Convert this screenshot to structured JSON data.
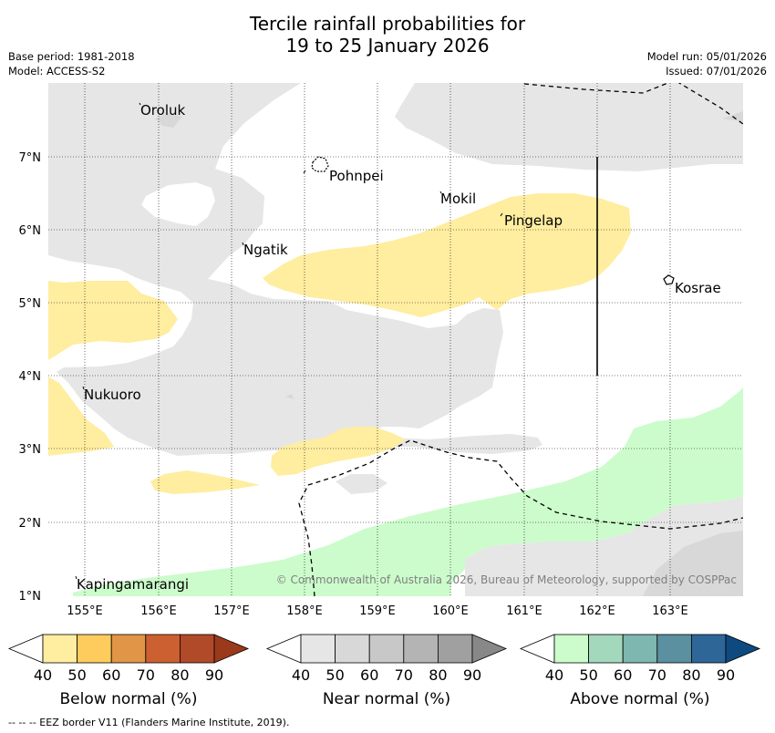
{
  "title_line1": "Tercile rainfall probabilities for",
  "title_line2": "19 to 25 January 2026",
  "base_period": "Base period: 1981-2018",
  "model": "Model: ACCESS-S2",
  "model_run": "Model run: 05/01/2026",
  "issued": "Issued: 07/01/2026",
  "lat_ticks": [
    "7°N",
    "6°N",
    "5°N",
    "4°N",
    "3°N",
    "2°N",
    "1°N"
  ],
  "lon_ticks": [
    "155°E",
    "156°E",
    "157°E",
    "158°E",
    "159°E",
    "160°E",
    "161°E",
    "162°E",
    "163°E"
  ],
  "places": {
    "oroluk": "Oroluk",
    "pohnpei": "Pohnpei",
    "mokil": "Mokil",
    "pingelap": "Pingelap",
    "ngatik": "Ngatik",
    "kosrae": "Kosrae",
    "nukuoro": "Nukuoro",
    "kapingamarangi": "Kapingamarangi"
  },
  "copyright": "© Commonwealth of Australia 2026, Bureau of Meteorology, supported by COSPPac",
  "legend_values": [
    "40",
    "50",
    "60",
    "70",
    "80",
    "90"
  ],
  "legend": {
    "below": {
      "title": "Below normal (%)",
      "colors": [
        "#ffeda0",
        "#fecc5c",
        "#e09646",
        "#cc6030",
        "#b04a28",
        "#9a3a1a"
      ]
    },
    "near": {
      "title": "Near normal (%)",
      "colors": [
        "#e6e6e6",
        "#d8d8d8",
        "#c8c8c8",
        "#b4b4b4",
        "#a0a0a0",
        "#888888"
      ]
    },
    "above": {
      "title": "Above normal (%)",
      "colors": [
        "#ccfccc",
        "#a4d8bc",
        "#7eb6b0",
        "#5a90a0",
        "#2e6698",
        "#0e4a80"
      ]
    }
  },
  "footer": "--  --  -- EEZ border V11 (Flanders Marine Institute, 2019)."
}
